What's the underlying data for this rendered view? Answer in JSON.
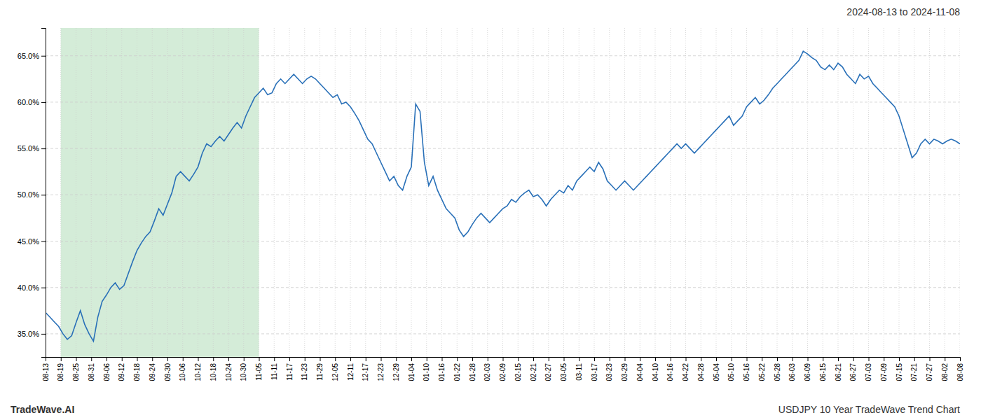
{
  "chart_data": {
    "type": "line",
    "title": "2024-08-13 to 2024-11-08",
    "annotations": [
      {
        "text": "TradeWave.AI"
      },
      {
        "text": "USDJPY 10 Year TradeWave Trend Chart"
      }
    ],
    "color": "#2970b8",
    "grid": true,
    "shade": {
      "x": [
        3.5,
        49
      ],
      "color": "#d4ecd8"
    },
    "xlim": [
      0,
      210
    ],
    "ylim": [
      32.5,
      68.0
    ],
    "yticks": [
      {
        "value": 35.0,
        "label": "35.0%"
      },
      {
        "value": 40.0,
        "label": "40.0%"
      },
      {
        "value": 45.0,
        "label": "45.0%"
      },
      {
        "value": 50.0,
        "label": "50.0%"
      },
      {
        "value": 55.0,
        "label": "55.0%"
      },
      {
        "value": 60.0,
        "label": "60.0%"
      },
      {
        "value": 65.0,
        "label": "65.0%"
      }
    ],
    "xticks": [
      {
        "value": 0,
        "label": "08-13"
      },
      {
        "value": 3.5,
        "label": "08-19"
      },
      {
        "value": 7,
        "label": "08-25"
      },
      {
        "value": 10.5,
        "label": "08-31"
      },
      {
        "value": 14,
        "label": "09-06"
      },
      {
        "value": 17.5,
        "label": "09-12"
      },
      {
        "value": 21,
        "label": "09-18"
      },
      {
        "value": 24.5,
        "label": "09-24"
      },
      {
        "value": 28,
        "label": "09-30"
      },
      {
        "value": 31.5,
        "label": "10-06"
      },
      {
        "value": 35,
        "label": "10-12"
      },
      {
        "value": 38.5,
        "label": "10-18"
      },
      {
        "value": 42,
        "label": "10-24"
      },
      {
        "value": 45.5,
        "label": "10-30"
      },
      {
        "value": 49,
        "label": "11-05"
      },
      {
        "value": 52.5,
        "label": "11-11"
      },
      {
        "value": 56,
        "label": "11-17"
      },
      {
        "value": 59.5,
        "label": "11-23"
      },
      {
        "value": 63,
        "label": "11-29"
      },
      {
        "value": 66.5,
        "label": "12-05"
      },
      {
        "value": 70,
        "label": "12-11"
      },
      {
        "value": 73.5,
        "label": "12-17"
      },
      {
        "value": 77,
        "label": "12-23"
      },
      {
        "value": 80.5,
        "label": "12-29"
      },
      {
        "value": 84,
        "label": "01-04"
      },
      {
        "value": 87.5,
        "label": "01-10"
      },
      {
        "value": 91,
        "label": "01-16"
      },
      {
        "value": 94.5,
        "label": "01-22"
      },
      {
        "value": 98,
        "label": "01-28"
      },
      {
        "value": 101.5,
        "label": "02-03"
      },
      {
        "value": 105,
        "label": "02-09"
      },
      {
        "value": 108.5,
        "label": "02-15"
      },
      {
        "value": 112,
        "label": "02-21"
      },
      {
        "value": 115.5,
        "label": "02-27"
      },
      {
        "value": 119,
        "label": "03-05"
      },
      {
        "value": 122.5,
        "label": "03-11"
      },
      {
        "value": 126,
        "label": "03-17"
      },
      {
        "value": 129.5,
        "label": "03-23"
      },
      {
        "value": 133,
        "label": "03-29"
      },
      {
        "value": 136.5,
        "label": "04-04"
      },
      {
        "value": 140,
        "label": "04-10"
      },
      {
        "value": 143.5,
        "label": "04-16"
      },
      {
        "value": 147,
        "label": "04-22"
      },
      {
        "value": 150.5,
        "label": "04-28"
      },
      {
        "value": 154,
        "label": "05-04"
      },
      {
        "value": 157.5,
        "label": "05-10"
      },
      {
        "value": 161,
        "label": "05-16"
      },
      {
        "value": 164.5,
        "label": "05-22"
      },
      {
        "value": 168,
        "label": "05-28"
      },
      {
        "value": 171.5,
        "label": "06-03"
      },
      {
        "value": 175,
        "label": "06-09"
      },
      {
        "value": 178.5,
        "label": "06-15"
      },
      {
        "value": 182,
        "label": "06-21"
      },
      {
        "value": 185.5,
        "label": "06-27"
      },
      {
        "value": 189,
        "label": "07-03"
      },
      {
        "value": 192.5,
        "label": "07-09"
      },
      {
        "value": 196,
        "label": "07-15"
      },
      {
        "value": 199.5,
        "label": "07-21"
      },
      {
        "value": 203,
        "label": "07-27"
      },
      {
        "value": 206.5,
        "label": "08-02"
      },
      {
        "value": 210,
        "label": "08-08"
      }
    ],
    "x": [
      0,
      1,
      2,
      3,
      4,
      5,
      6,
      7,
      8,
      9,
      10,
      11,
      12,
      13,
      14,
      15,
      16,
      17,
      18,
      19,
      20,
      21,
      22,
      23,
      24,
      25,
      26,
      27,
      28,
      29,
      30,
      31,
      32,
      33,
      34,
      35,
      36,
      37,
      38,
      39,
      40,
      41,
      42,
      43,
      44,
      45,
      46,
      47,
      48,
      49,
      50,
      51,
      52,
      53,
      54,
      55,
      56,
      57,
      58,
      59,
      60,
      61,
      62,
      63,
      64,
      65,
      66,
      67,
      68,
      69,
      70,
      71,
      72,
      73,
      74,
      75,
      76,
      77,
      78,
      79,
      80,
      81,
      82,
      83,
      84,
      85,
      86,
      87,
      88,
      89,
      90,
      91,
      92,
      93,
      94,
      95,
      96,
      97,
      98,
      99,
      100,
      101,
      102,
      103,
      104,
      105,
      106,
      107,
      108,
      109,
      110,
      111,
      112,
      113,
      114,
      115,
      116,
      117,
      118,
      119,
      120,
      121,
      122,
      123,
      124,
      125,
      126,
      127,
      128,
      129,
      130,
      131,
      132,
      133,
      134,
      135,
      136,
      137,
      138,
      139,
      140,
      141,
      142,
      143,
      144,
      145,
      146,
      147,
      148,
      149,
      150,
      151,
      152,
      153,
      154,
      155,
      156,
      157,
      158,
      159,
      160,
      161,
      162,
      163,
      164,
      165,
      166,
      167,
      168,
      169,
      170,
      171,
      172,
      173,
      174,
      175,
      176,
      177,
      178,
      179,
      180,
      181,
      182,
      183,
      184,
      185,
      186,
      187,
      188,
      189,
      190,
      191,
      192,
      193,
      194,
      195,
      196,
      197,
      198,
      199,
      200,
      201,
      202,
      203,
      204,
      205,
      206,
      207,
      208,
      209,
      210
    ],
    "values": [
      37.3,
      36.8,
      36.3,
      35.8,
      35.0,
      34.4,
      34.8,
      36.2,
      37.5,
      36.0,
      35.0,
      34.2,
      36.8,
      38.5,
      39.2,
      40.0,
      40.5,
      39.8,
      40.2,
      41.5,
      42.8,
      44.0,
      44.8,
      45.5,
      46.0,
      47.2,
      48.5,
      47.8,
      49.0,
      50.2,
      52.0,
      52.5,
      52.0,
      51.5,
      52.2,
      53.0,
      54.5,
      55.5,
      55.2,
      55.8,
      56.3,
      55.8,
      56.5,
      57.2,
      57.8,
      57.2,
      58.5,
      59.5,
      60.5,
      61.0,
      61.5,
      60.8,
      61.0,
      62.0,
      62.5,
      62.0,
      62.5,
      63.0,
      62.5,
      62.0,
      62.5,
      62.8,
      62.5,
      62.0,
      61.5,
      61.0,
      60.5,
      60.8,
      59.8,
      60.0,
      59.5,
      58.8,
      58.0,
      57.0,
      56.0,
      55.5,
      54.5,
      53.5,
      52.5,
      51.5,
      52.0,
      51.0,
      50.5,
      52.0,
      53.0,
      59.8,
      59.0,
      53.5,
      51.0,
      52.0,
      50.5,
      49.5,
      48.5,
      48.0,
      47.5,
      46.2,
      45.5,
      46.0,
      46.8,
      47.5,
      48.0,
      47.5,
      47.0,
      47.5,
      48.0,
      48.5,
      48.8,
      49.5,
      49.2,
      49.8,
      50.2,
      50.5,
      49.8,
      50.0,
      49.5,
      48.8,
      49.5,
      50.0,
      50.5,
      50.2,
      51.0,
      50.5,
      51.5,
      52.0,
      52.5,
      53.0,
      52.5,
      53.5,
      52.8,
      51.5,
      51.0,
      50.5,
      51.0,
      51.5,
      51.0,
      50.5,
      51.0,
      51.5,
      52.0,
      52.5,
      53.0,
      53.5,
      54.0,
      54.5,
      55.0,
      55.5,
      55.0,
      55.5,
      55.0,
      54.5,
      55.0,
      55.5,
      56.0,
      56.5,
      57.0,
      57.5,
      58.0,
      58.5,
      57.5,
      58.0,
      58.5,
      59.5,
      60.0,
      60.5,
      59.8,
      60.2,
      60.8,
      61.5,
      62.0,
      62.5,
      63.0,
      63.5,
      64.0,
      64.5,
      65.5,
      65.2,
      64.8,
      64.5,
      63.8,
      63.5,
      64.0,
      63.5,
      64.2,
      63.8,
      63.0,
      62.5,
      62.0,
      63.0,
      62.5,
      62.8,
      62.0,
      61.5,
      61.0,
      60.5,
      60.0,
      59.5,
      58.5,
      57.0,
      55.5,
      54.0,
      54.5,
      55.5,
      56.0,
      55.5,
      56.0,
      55.8,
      55.5,
      55.8,
      56.0,
      55.8,
      55.5
    ]
  }
}
